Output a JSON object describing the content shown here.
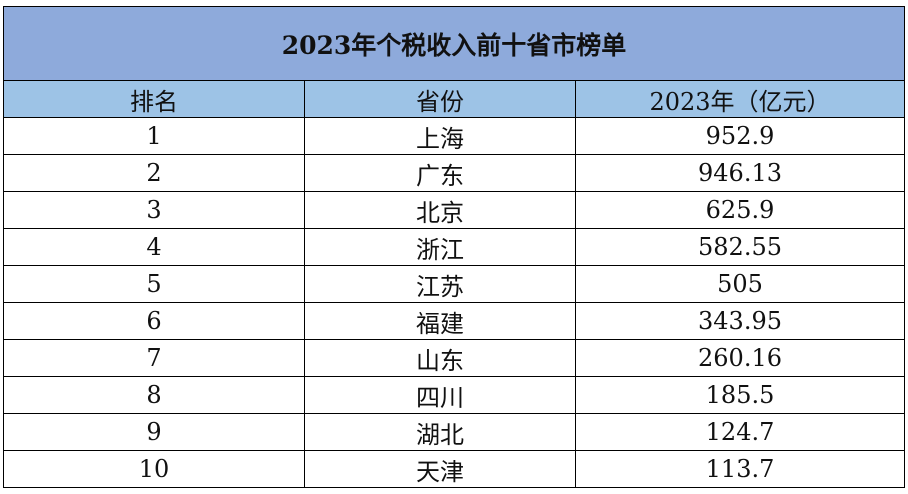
{
  "title": "2023年个税收入前十省市榜单",
  "columns": [
    "排名",
    "省份",
    "2023年（亿元）"
  ],
  "rows": [
    [
      "1",
      "上海",
      "952.9"
    ],
    [
      "2",
      "广东",
      "946.13"
    ],
    [
      "3",
      "北京",
      "625.9"
    ],
    [
      "4",
      "浙江",
      "582.55"
    ],
    [
      "5",
      "江苏",
      "505"
    ],
    [
      "6",
      "福建",
      "343.95"
    ],
    [
      "7",
      "山东",
      "260.16"
    ],
    [
      "8",
      "四川",
      "185.5"
    ],
    [
      "9",
      "湖北",
      "124.7"
    ],
    [
      "10",
      "天津",
      "113.7"
    ]
  ],
  "colors": {
    "title_bg": "#8eaadb",
    "header_bg": "#9dc3e6"
  }
}
